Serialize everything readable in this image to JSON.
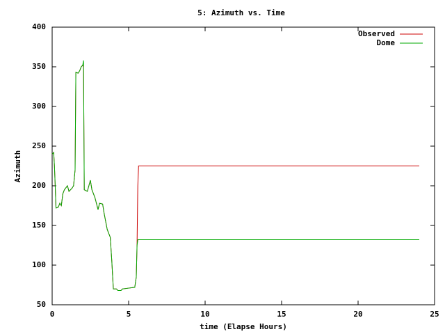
{
  "chart_data": {
    "type": "line",
    "title": "5: Azimuth vs. Time",
    "x_label": "time (Elapse Hours)",
    "y_label": "Azimuth",
    "x": [
      0,
      0.1,
      0.15,
      0.2,
      0.25,
      0.4,
      0.5,
      0.6,
      0.7,
      0.8,
      1.0,
      1.1,
      1.3,
      1.4,
      1.5,
      1.55,
      1.7,
      1.8,
      1.9,
      2.0,
      2.05,
      2.1,
      2.3,
      2.4,
      2.5,
      2.6,
      2.8,
      3.0,
      3.1,
      3.3,
      3.4,
      3.5,
      3.6,
      3.8,
      3.9,
      4.0,
      4.2,
      4.3,
      4.5,
      4.6,
      5.0,
      5.4,
      5.5,
      5.55,
      5.6,
      5.65,
      24
    ],
    "series": [
      {
        "name": "Observed",
        "color": "#cc0000",
        "values": [
          240,
          242,
          225,
          200,
          172,
          173,
          178,
          175,
          190,
          195,
          200,
          193,
          197,
          200,
          220,
          343,
          342,
          345,
          350,
          352,
          350,
          195,
          193,
          200,
          207,
          195,
          185,
          170,
          178,
          177,
          165,
          155,
          145,
          135,
          105,
          70,
          70,
          68,
          68,
          70,
          71,
          72,
          85,
          125,
          200,
          225,
          225
        ]
      },
      {
        "name": "Dome",
        "color": "#00aa00",
        "values": [
          240,
          242,
          225,
          200,
          172,
          173,
          178,
          175,
          190,
          195,
          200,
          193,
          197,
          200,
          220,
          343,
          342,
          345,
          350,
          352,
          358,
          195,
          193,
          200,
          207,
          195,
          185,
          170,
          178,
          177,
          165,
          155,
          145,
          135,
          105,
          70,
          70,
          68,
          68,
          70,
          71,
          72,
          85,
          125,
          132,
          132,
          132
        ]
      }
    ],
    "xlim": [
      0,
      25
    ],
    "xticks": [
      0,
      5,
      10,
      15,
      20,
      25
    ],
    "ylim": [
      50,
      400
    ],
    "yticks": [
      50,
      100,
      150,
      200,
      250,
      300,
      350,
      400
    ],
    "legend": "top-right"
  }
}
